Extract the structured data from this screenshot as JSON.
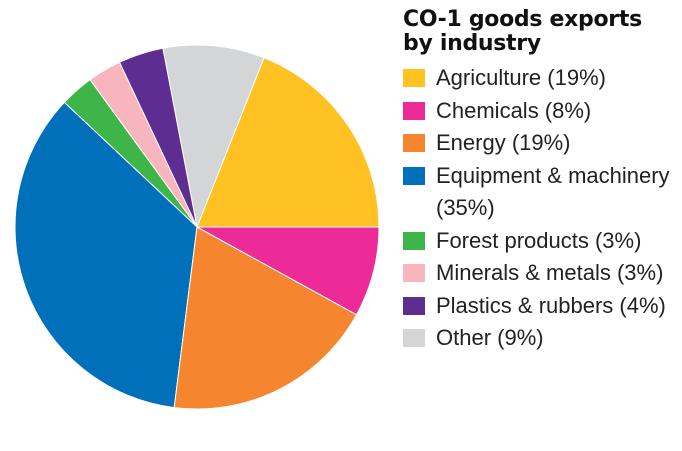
{
  "chart_data": {
    "type": "pie",
    "title": "CO-1 goods exports by industry",
    "slices": [
      {
        "label": "Agriculture (19%)",
        "value": 19,
        "color": "#FFC222"
      },
      {
        "label": "Chemicals (8%)",
        "value": 8,
        "color": "#EC2A98"
      },
      {
        "label": "Energy (19%)",
        "value": 19,
        "color": "#F5862F"
      },
      {
        "label": "Equipment & machinery (35%)",
        "value": 35,
        "color": "#0070BA"
      },
      {
        "label": "Forest products (3%)",
        "value": 3,
        "color": "#3EB549"
      },
      {
        "label": "Minerals & metals (3%)",
        "value": 3,
        "color": "#F8B5BE"
      },
      {
        "label": "Plastics & rubbers (4%)",
        "value": 4,
        "color": "#5E2D91"
      },
      {
        "label": "Other (9%)",
        "value": 9,
        "color": "#D4D5D7"
      }
    ],
    "slice_order": [
      "Agriculture (19%)",
      "Other (9%)",
      "Plastics & rubbers (4%)",
      "Minerals & metals (3%)",
      "Forest products (3%)",
      "Equipment & machinery (35%)",
      "Energy (19%)",
      "Chemicals (8%)"
    ],
    "legend_placement": "right"
  }
}
